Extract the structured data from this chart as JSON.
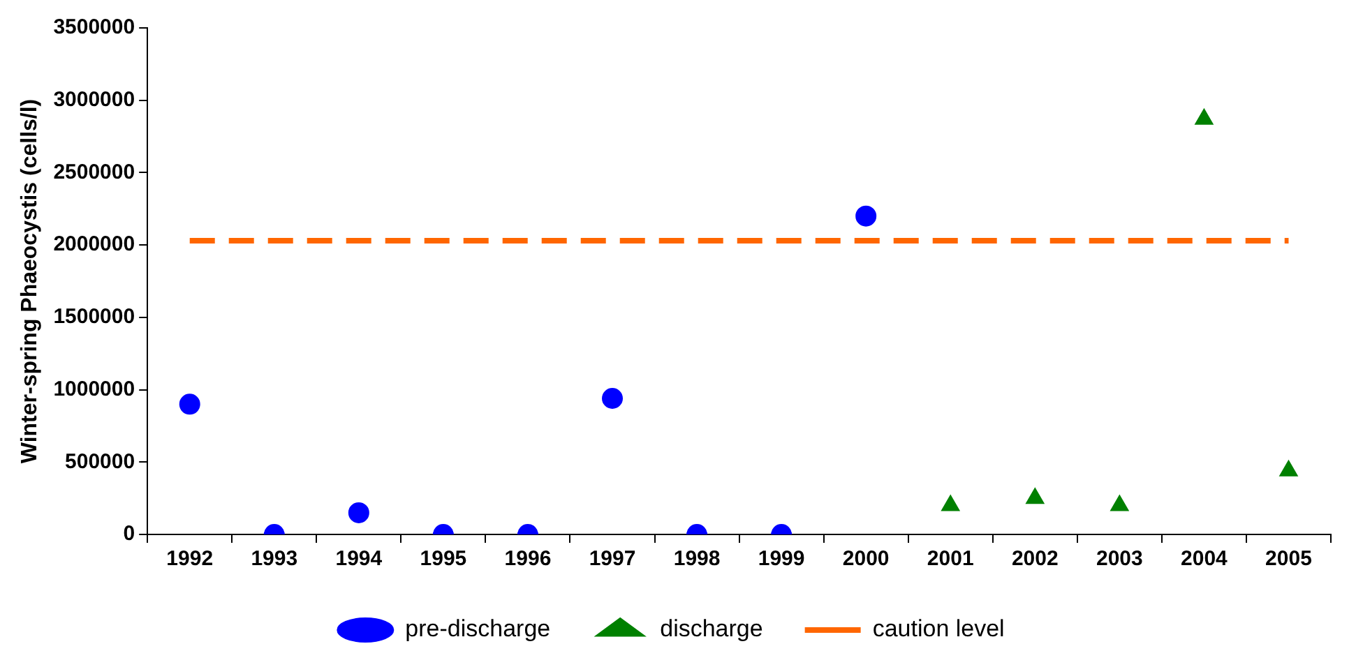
{
  "chart_data": {
    "type": "scatter",
    "ylabel": "Winter-spring Phaeocystis (cells/l)",
    "categories": [
      "1992",
      "1993",
      "1994",
      "1995",
      "1996",
      "1997",
      "1998",
      "1999",
      "2000",
      "2001",
      "2002",
      "2003",
      "2004",
      "2005"
    ],
    "ylim": [
      0,
      3500000
    ],
    "yticks": [
      0,
      500000,
      1000000,
      1500000,
      2000000,
      2500000,
      3000000,
      3500000
    ],
    "grid": false,
    "legend": "bottom",
    "series": [
      {
        "name": "pre-discharge",
        "marker": "circle",
        "color": "#0000ff",
        "values": [
          900000,
          0,
          150000,
          0,
          0,
          940000,
          0,
          0,
          2200000,
          null,
          null,
          null,
          null,
          null
        ]
      },
      {
        "name": "discharge",
        "marker": "triangle",
        "color": "#008000",
        "values": [
          null,
          null,
          null,
          null,
          null,
          null,
          null,
          null,
          null,
          200000,
          250000,
          200000,
          2870000,
          440000
        ]
      },
      {
        "name": "caution level",
        "type": "line",
        "marker": "none",
        "line_style": "dashed",
        "color": "#ff6600",
        "values": [
          2030000,
          2030000,
          2030000,
          2030000,
          2030000,
          2030000,
          2030000,
          2030000,
          2030000,
          2030000,
          2030000,
          2030000,
          2030000,
          2030000
        ]
      }
    ]
  }
}
